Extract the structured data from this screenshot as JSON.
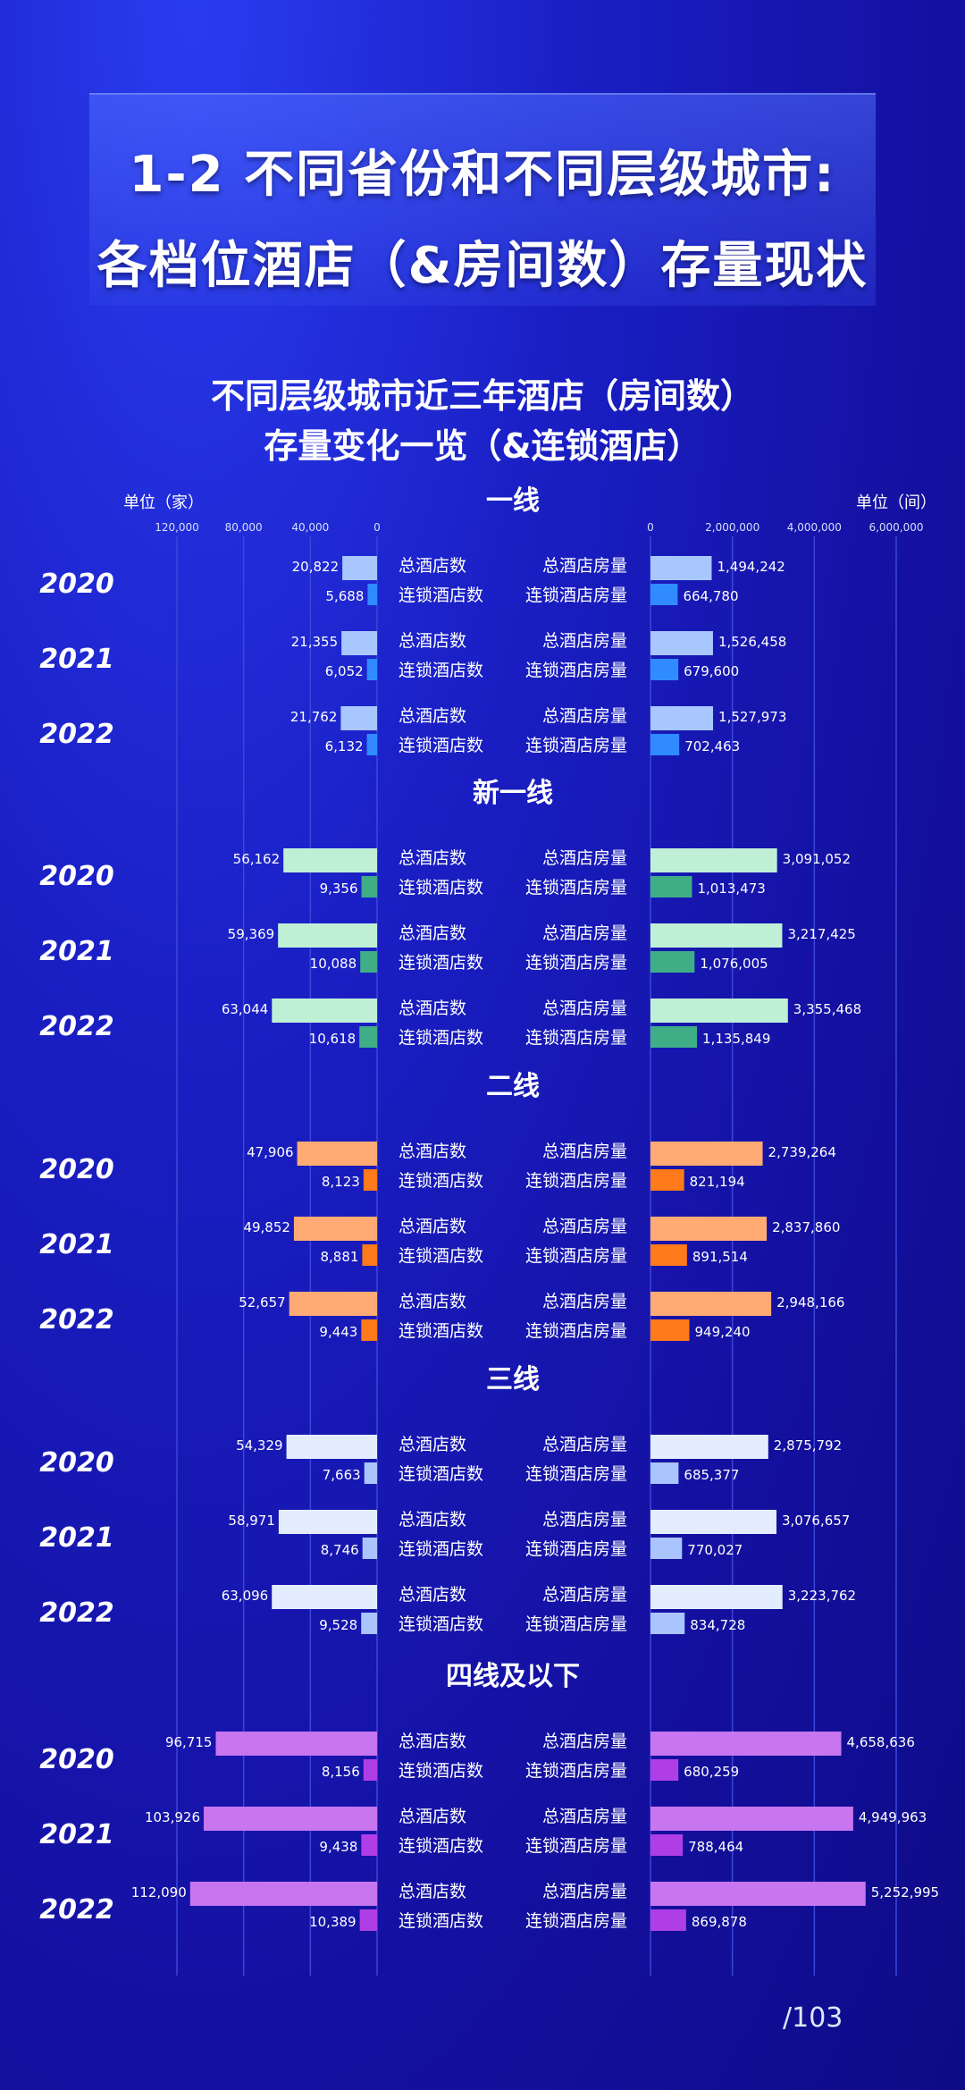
{
  "title": {
    "line1": "1-2 不同省份和不同层级城市:",
    "line2": "各档位酒店（&房间数）存量现状"
  },
  "subtitle": {
    "line1": "不同层级城市近三年酒店（房间数）",
    "line2": "存量变化一览（&连锁酒店）"
  },
  "unit_left": "单位（家）",
  "unit_right": "单位（间）",
  "pager": "/103",
  "chart_data": {
    "type": "bar",
    "left_axis": {
      "ticks": [
        "120,000",
        "80,000",
        "40,000",
        "0"
      ],
      "max": 120000
    },
    "right_axis": {
      "ticks": [
        "0",
        "2,000,000",
        "4,000,000",
        "6,000,000"
      ],
      "max": 6000000
    },
    "labels": {
      "total_hotels": "总酒店数",
      "chain_hotels": "连锁酒店数",
      "total_rooms": "总酒店房量",
      "chain_rooms": "连锁酒店房量"
    },
    "groups": [
      {
        "name": "一线",
        "color": "#a8c6ff",
        "chain_color": "#2f8bff",
        "years": [
          {
            "year": "2020",
            "total_hotels": 20822,
            "chain_hotels": 5688,
            "total_rooms": 1494242,
            "chain_rooms": 664780
          },
          {
            "year": "2021",
            "total_hotels": 21355,
            "chain_hotels": 6052,
            "total_rooms": 1526458,
            "chain_rooms": 679600
          },
          {
            "year": "2022",
            "total_hotels": 21762,
            "chain_hotels": 6132,
            "total_rooms": 1527973,
            "chain_rooms": 702463
          }
        ]
      },
      {
        "name": "新一线",
        "color": "#bff0d6",
        "chain_color": "#3fae86",
        "years": [
          {
            "year": "2020",
            "total_hotels": 56162,
            "chain_hotels": 9356,
            "total_rooms": 3091052,
            "chain_rooms": 1013473
          },
          {
            "year": "2021",
            "total_hotels": 59369,
            "chain_hotels": 10088,
            "total_rooms": 3217425,
            "chain_rooms": 1076005
          },
          {
            "year": "2022",
            "total_hotels": 63044,
            "chain_hotels": 10618,
            "total_rooms": 3355468,
            "chain_rooms": 1135849
          }
        ]
      },
      {
        "name": "二线",
        "color": "#ffab73",
        "chain_color": "#ff7a1a",
        "years": [
          {
            "year": "2020",
            "total_hotels": 47906,
            "chain_hotels": 8123,
            "total_rooms": 2739264,
            "chain_rooms": 821194
          },
          {
            "year": "2021",
            "total_hotels": 49852,
            "chain_hotels": 8881,
            "total_rooms": 2837860,
            "chain_rooms": 891514
          },
          {
            "year": "2022",
            "total_hotels": 52657,
            "chain_hotels": 9443,
            "total_rooms": 2948166,
            "chain_rooms": 949240
          }
        ]
      },
      {
        "name": "三线",
        "color": "#e4ecff",
        "chain_color": "#a9c4ff",
        "years": [
          {
            "year": "2020",
            "total_hotels": 54329,
            "chain_hotels": 7663,
            "total_rooms": 2875792,
            "chain_rooms": 685377
          },
          {
            "year": "2021",
            "total_hotels": 58971,
            "chain_hotels": 8746,
            "total_rooms": 3076657,
            "chain_rooms": 770027
          },
          {
            "year": "2022",
            "total_hotels": 63096,
            "chain_hotels": 9528,
            "total_rooms": 3223762,
            "chain_rooms": 834728
          }
        ]
      },
      {
        "name": "四线及以下",
        "color": "#c875f0",
        "chain_color": "#b03ee6",
        "years": [
          {
            "year": "2020",
            "total_hotels": 96715,
            "chain_hotels": 8156,
            "total_rooms": 4658636,
            "chain_rooms": 680259
          },
          {
            "year": "2021",
            "total_hotels": 103926,
            "chain_hotels": 9438,
            "total_rooms": 4949963,
            "chain_rooms": 788464
          },
          {
            "year": "2022",
            "total_hotels": 112090,
            "chain_hotels": 10389,
            "total_rooms": 5252995,
            "chain_rooms": 869878
          }
        ]
      }
    ]
  }
}
